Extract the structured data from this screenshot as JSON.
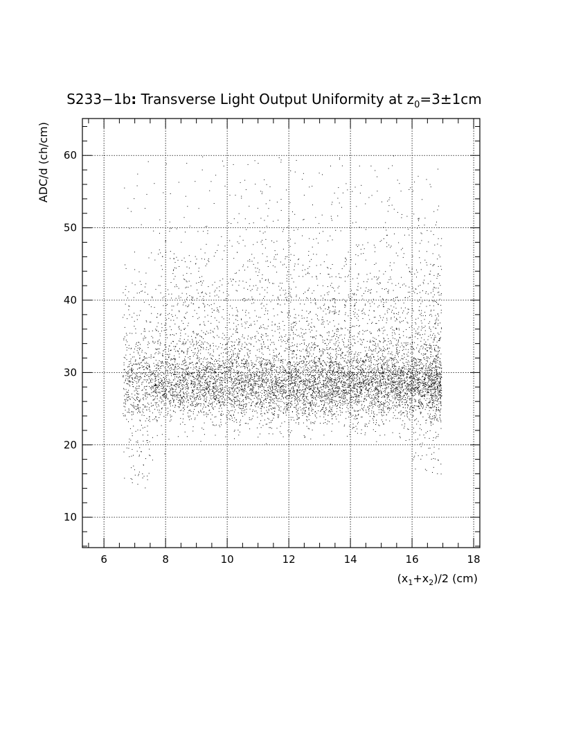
{
  "chart_data": {
    "type": "scatter",
    "title": {
      "main": "S233−1b",
      "sep": ":",
      "rest": " Transverse Light Output Uniformity at z",
      "sub": "0",
      "tail": "=3±1cm"
    },
    "xlabel": {
      "p1": "(x",
      "s1": "1",
      "p2": "+x",
      "s2": "2",
      "p3": ")/2 (cm)"
    },
    "ylabel": "ADC/d (ch/cm)",
    "xlim": [
      5.3,
      18.2
    ],
    "ylim": [
      5.8,
      65.1
    ],
    "x_ticks": [
      6,
      8,
      10,
      12,
      14,
      16,
      18
    ],
    "x_tick_labels": [
      "6",
      "8",
      "10",
      "12",
      "14",
      "16",
      "18"
    ],
    "y_ticks": [
      10,
      20,
      30,
      40,
      50,
      60
    ],
    "y_tick_labels": [
      "10",
      "20",
      "30",
      "40",
      "50",
      "60"
    ],
    "grid": true,
    "point_color": "#000000",
    "x_range": [
      6.6,
      17.1
    ],
    "dense_band_y": [
      24,
      33
    ],
    "y_range": [
      14,
      60
    ],
    "approx_points": 9000,
    "seed": 23317
  }
}
